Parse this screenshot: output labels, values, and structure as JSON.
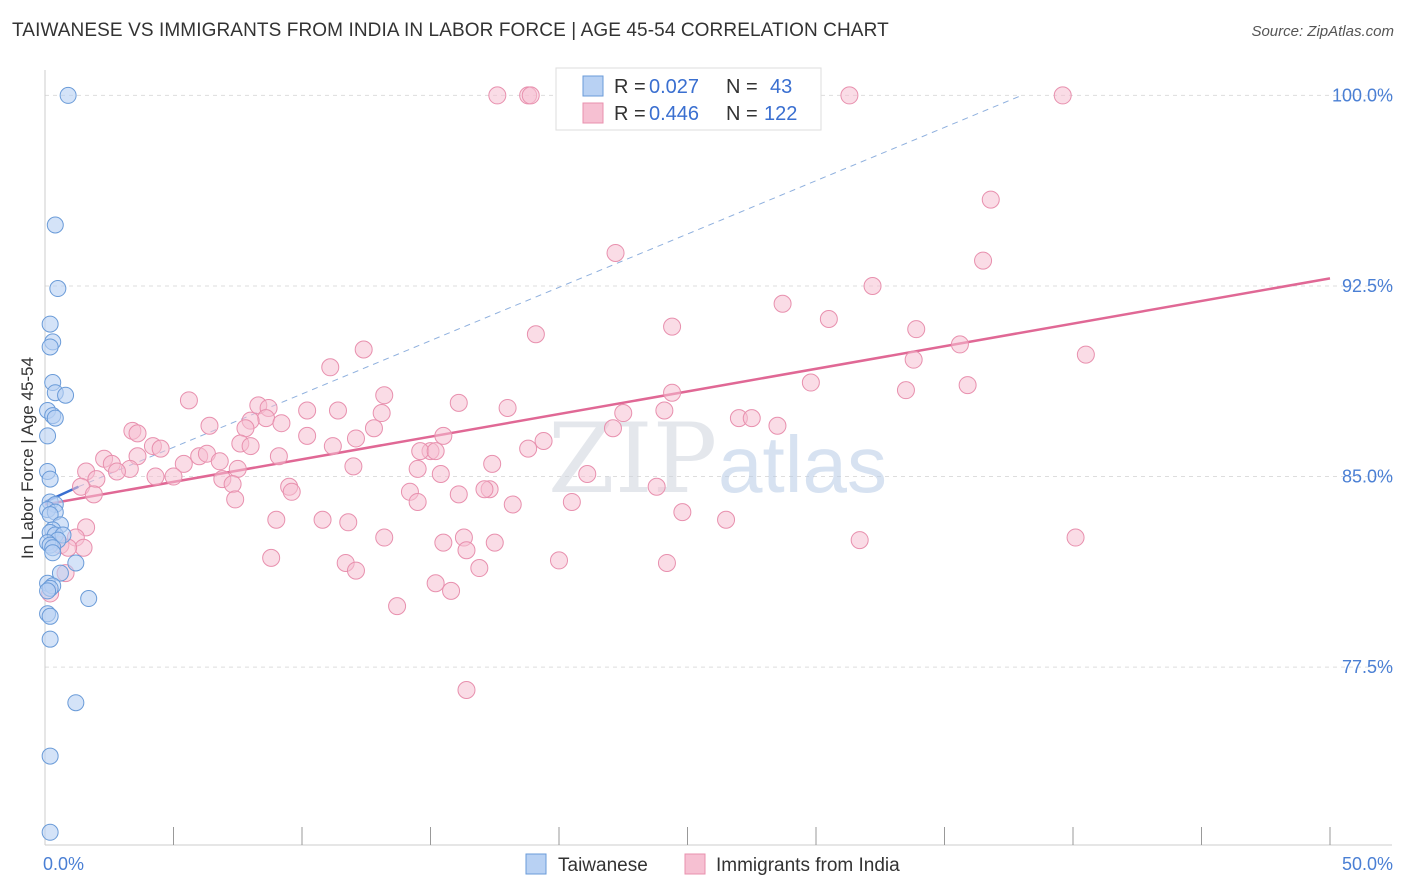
{
  "header": {
    "title": "TAIWANESE VS IMMIGRANTS FROM INDIA IN LABOR FORCE | AGE 45-54 CORRELATION CHART",
    "source": "Source: ZipAtlas.com"
  },
  "watermark": {
    "zip": "ZIP",
    "atlas": "atlas"
  },
  "colors": {
    "taiwanese_fill": "#b8d1f3",
    "taiwanese_stroke": "#6a9bd8",
    "taiwanese_line": "#3a6fd0",
    "india_fill": "#f6c0d2",
    "india_stroke": "#e890ae",
    "india_line": "#e06895",
    "grid": "#dddddd",
    "tick_label": "#4a7fd4"
  },
  "legend": {
    "rows": [
      {
        "r_label": "R =",
        "r_value": "0.027",
        "n_label": "N =",
        "n_value": "43"
      },
      {
        "r_label": "R =",
        "r_value": "0.446",
        "n_label": "N =",
        "n_value": "122"
      }
    ]
  },
  "chart_data": {
    "type": "scatter",
    "title": "TAIWANESE VS IMMIGRANTS FROM INDIA IN LABOR FORCE | AGE 45-54 CORRELATION CHART",
    "xlabel": "",
    "ylabel": "In Labor Force | Age 45-54",
    "xlim": [
      0,
      50
    ],
    "ylim": [
      70.5,
      101
    ],
    "x_tick_labels": [
      {
        "value": 0,
        "label": "0.0%"
      },
      {
        "value": 50,
        "label": "50.0%"
      }
    ],
    "y_tick_labels": [
      {
        "value": 77.5,
        "label": "77.5%"
      },
      {
        "value": 85.0,
        "label": "85.0%"
      },
      {
        "value": 92.5,
        "label": "92.5%"
      },
      {
        "value": 100.0,
        "label": "100.0%"
      }
    ],
    "x_minor_ticks": [
      5,
      10,
      15,
      20,
      25,
      30,
      35,
      40,
      45,
      50
    ],
    "series": [
      {
        "name": "Taiwanese",
        "r": 0.027,
        "n": 43,
        "trend": {
          "x": [
            0,
            1.3
          ],
          "y": [
            84.0,
            84.6
          ]
        },
        "trend_dashed": {
          "x": [
            1.3,
            38.0
          ],
          "y": [
            84.6,
            100.0
          ]
        },
        "points": [
          [
            0.9,
            100.0
          ],
          [
            0.4,
            94.9
          ],
          [
            0.5,
            92.4
          ],
          [
            0.2,
            91.0
          ],
          [
            0.3,
            90.3
          ],
          [
            0.2,
            90.1
          ],
          [
            0.3,
            88.7
          ],
          [
            0.4,
            88.3
          ],
          [
            0.8,
            88.2
          ],
          [
            0.1,
            87.6
          ],
          [
            0.3,
            87.4
          ],
          [
            0.4,
            87.3
          ],
          [
            0.1,
            86.6
          ],
          [
            0.1,
            85.2
          ],
          [
            0.2,
            84.9
          ],
          [
            0.2,
            84.0
          ],
          [
            0.4,
            83.9
          ],
          [
            0.1,
            83.7
          ],
          [
            0.4,
            83.6
          ],
          [
            0.2,
            83.5
          ],
          [
            0.6,
            83.1
          ],
          [
            0.3,
            82.9
          ],
          [
            0.2,
            82.8
          ],
          [
            0.4,
            82.7
          ],
          [
            0.7,
            82.7
          ],
          [
            0.5,
            82.5
          ],
          [
            0.1,
            82.4
          ],
          [
            0.2,
            82.3
          ],
          [
            0.3,
            82.2
          ],
          [
            1.2,
            81.6
          ],
          [
            0.6,
            81.2
          ],
          [
            0.1,
            80.8
          ],
          [
            0.3,
            80.7
          ],
          [
            0.2,
            80.6
          ],
          [
            1.7,
            80.2
          ],
          [
            0.1,
            79.6
          ],
          [
            0.2,
            79.5
          ],
          [
            0.2,
            78.6
          ],
          [
            1.2,
            76.1
          ],
          [
            0.2,
            74.0
          ],
          [
            0.2,
            71.0
          ],
          [
            0.3,
            82.0
          ],
          [
            0.1,
            80.5
          ]
        ]
      },
      {
        "name": "Immigrants from India",
        "r": 0.446,
        "n": 122,
        "trend": {
          "x": [
            0,
            50
          ],
          "y": [
            83.9,
            92.8
          ]
        },
        "points": [
          [
            17.6,
            100.0
          ],
          [
            18.8,
            100.0
          ],
          [
            18.9,
            100.0
          ],
          [
            31.3,
            100.0
          ],
          [
            39.6,
            100.0
          ],
          [
            36.8,
            95.9
          ],
          [
            22.2,
            93.8
          ],
          [
            36.5,
            93.5
          ],
          [
            32.2,
            92.5
          ],
          [
            28.7,
            91.8
          ],
          [
            30.5,
            91.2
          ],
          [
            24.4,
            90.9
          ],
          [
            33.9,
            90.8
          ],
          [
            19.1,
            90.6
          ],
          [
            12.4,
            90.0
          ],
          [
            35.6,
            90.2
          ],
          [
            40.5,
            89.8
          ],
          [
            11.1,
            89.3
          ],
          [
            33.8,
            89.6
          ],
          [
            29.8,
            88.7
          ],
          [
            35.9,
            88.6
          ],
          [
            33.5,
            88.4
          ],
          [
            24.4,
            88.3
          ],
          [
            13.2,
            88.2
          ],
          [
            5.6,
            88.0
          ],
          [
            8.3,
            87.8
          ],
          [
            16.1,
            87.9
          ],
          [
            18.0,
            87.7
          ],
          [
            8.7,
            87.7
          ],
          [
            11.4,
            87.6
          ],
          [
            24.1,
            87.6
          ],
          [
            10.2,
            87.6
          ],
          [
            13.1,
            87.5
          ],
          [
            22.5,
            87.5
          ],
          [
            8.6,
            87.3
          ],
          [
            8.0,
            87.2
          ],
          [
            9.2,
            87.1
          ],
          [
            6.4,
            87.0
          ],
          [
            27.0,
            87.3
          ],
          [
            27.5,
            87.3
          ],
          [
            28.5,
            87.0
          ],
          [
            22.1,
            86.9
          ],
          [
            12.8,
            86.9
          ],
          [
            7.8,
            86.9
          ],
          [
            3.4,
            86.8
          ],
          [
            3.6,
            86.7
          ],
          [
            10.2,
            86.6
          ],
          [
            12.1,
            86.5
          ],
          [
            15.5,
            86.6
          ],
          [
            19.4,
            86.4
          ],
          [
            7.6,
            86.3
          ],
          [
            8.0,
            86.2
          ],
          [
            4.2,
            86.2
          ],
          [
            11.2,
            86.2
          ],
          [
            4.5,
            86.1
          ],
          [
            15.0,
            86.0
          ],
          [
            18.8,
            86.1
          ],
          [
            14.6,
            86.0
          ],
          [
            15.2,
            86.0
          ],
          [
            6.0,
            85.8
          ],
          [
            6.3,
            85.9
          ],
          [
            3.6,
            85.8
          ],
          [
            2.3,
            85.7
          ],
          [
            9.1,
            85.8
          ],
          [
            2.6,
            85.5
          ],
          [
            1.6,
            85.2
          ],
          [
            3.3,
            85.3
          ],
          [
            5.4,
            85.5
          ],
          [
            6.8,
            85.6
          ],
          [
            17.4,
            85.5
          ],
          [
            12.0,
            85.4
          ],
          [
            7.5,
            85.3
          ],
          [
            2.8,
            85.2
          ],
          [
            4.3,
            85.0
          ],
          [
            5.0,
            85.0
          ],
          [
            14.5,
            85.3
          ],
          [
            15.4,
            85.1
          ],
          [
            21.1,
            85.1
          ],
          [
            2.0,
            84.9
          ],
          [
            6.9,
            84.9
          ],
          [
            1.4,
            84.6
          ],
          [
            7.3,
            84.7
          ],
          [
            9.5,
            84.6
          ],
          [
            9.6,
            84.4
          ],
          [
            14.2,
            84.4
          ],
          [
            14.5,
            84.0
          ],
          [
            17.3,
            84.5
          ],
          [
            17.1,
            84.5
          ],
          [
            23.8,
            84.6
          ],
          [
            1.9,
            84.3
          ],
          [
            16.1,
            84.3
          ],
          [
            7.4,
            84.1
          ],
          [
            18.2,
            83.9
          ],
          [
            20.5,
            84.0
          ],
          [
            24.8,
            83.6
          ],
          [
            9.0,
            83.3
          ],
          [
            10.8,
            83.3
          ],
          [
            11.8,
            83.2
          ],
          [
            26.5,
            83.3
          ],
          [
            1.6,
            83.0
          ],
          [
            13.2,
            82.6
          ],
          [
            1.2,
            82.6
          ],
          [
            16.3,
            82.6
          ],
          [
            40.1,
            82.6
          ],
          [
            31.7,
            82.5
          ],
          [
            17.5,
            82.4
          ],
          [
            1.5,
            82.2
          ],
          [
            0.6,
            82.3
          ],
          [
            0.9,
            82.2
          ],
          [
            15.5,
            82.4
          ],
          [
            16.4,
            82.1
          ],
          [
            8.8,
            81.8
          ],
          [
            24.2,
            81.6
          ],
          [
            20.0,
            81.7
          ],
          [
            11.7,
            81.6
          ],
          [
            12.1,
            81.3
          ],
          [
            16.9,
            81.4
          ],
          [
            0.8,
            81.2
          ],
          [
            15.2,
            80.8
          ],
          [
            15.8,
            80.5
          ],
          [
            0.2,
            80.4
          ],
          [
            13.7,
            79.9
          ],
          [
            16.4,
            76.6
          ]
        ]
      }
    ]
  },
  "bottom_legend": {
    "items": [
      "Taiwanese",
      "Immigrants from India"
    ]
  }
}
